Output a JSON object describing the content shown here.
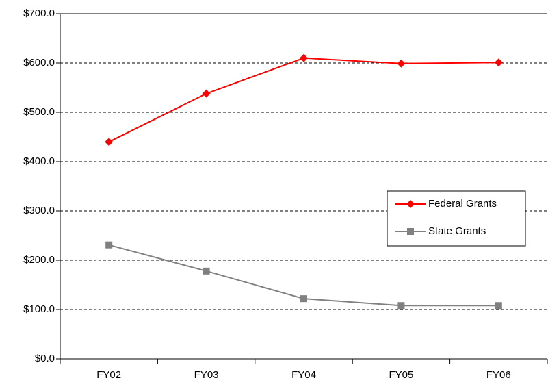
{
  "chart_data": {
    "type": "line",
    "categories": [
      "FY02",
      "FY03",
      "FY04",
      "FY05",
      "FY06"
    ],
    "series": [
      {
        "name": "Federal Grants",
        "color": "#ff0000",
        "marker": "diamond",
        "values": [
          440,
          538,
          610,
          599,
          601
        ]
      },
      {
        "name": "State Grants",
        "color": "#808080",
        "marker": "square",
        "values": [
          231,
          178,
          122,
          108,
          108
        ]
      }
    ],
    "ylim": [
      0,
      700
    ],
    "yticks": [
      {
        "value": 0,
        "label": "$0.0"
      },
      {
        "value": 100,
        "label": "$100.0"
      },
      {
        "value": 200,
        "label": "$200.0"
      },
      {
        "value": 300,
        "label": "$300.0"
      },
      {
        "value": 400,
        "label": "$400.0"
      },
      {
        "value": 500,
        "label": "$500.0"
      },
      {
        "value": 600,
        "label": "$600.0"
      },
      {
        "value": 700,
        "label": "$700.0"
      }
    ],
    "grid": true,
    "legend": "right"
  }
}
